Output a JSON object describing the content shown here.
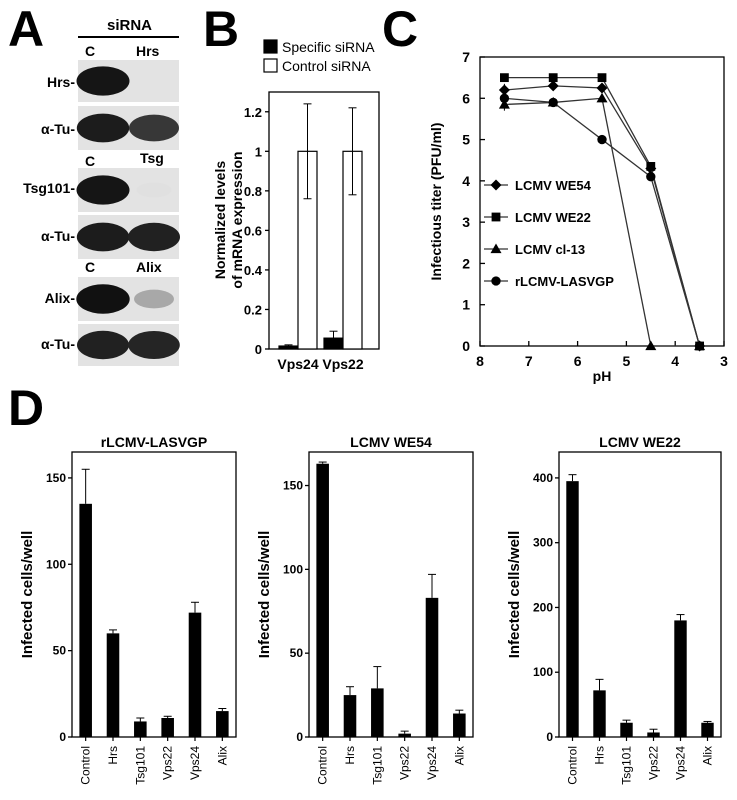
{
  "panels": {
    "a": "A",
    "b": "B",
    "c": "C",
    "d": "D"
  },
  "panel_a": {
    "header": "siRNA",
    "blots": [
      {
        "label": "Hrs-",
        "band_intensity": [
          0.95,
          0.0
        ]
      },
      {
        "label": "α-Tu-",
        "band_intensity": [
          0.92,
          0.8
        ]
      },
      {
        "label": "Tsg101-",
        "band_intensity": [
          0.95,
          0.05
        ]
      },
      {
        "label": "α-Tu-",
        "band_intensity": [
          0.92,
          0.9
        ]
      },
      {
        "label": "Alix-",
        "band_intensity": [
          0.97,
          0.3
        ]
      },
      {
        "label": "α-Tu-",
        "band_intensity": [
          0.9,
          0.88
        ]
      }
    ],
    "lane_labels": [
      [
        "C",
        "Hrs"
      ],
      [
        "C",
        "Tsg"
      ],
      [
        "C",
        "Alix"
      ]
    ]
  },
  "chart_data": [
    {
      "type": "bar",
      "panel": "B",
      "categories": [
        "Vps24",
        "Vps22"
      ],
      "series": [
        {
          "name": "Specific siRNA",
          "values": [
            0.015,
            0.055
          ],
          "errors": [
            0.006,
            0.035
          ],
          "color": "#000000"
        },
        {
          "name": "Control siRNA",
          "values": [
            1.0,
            1.0
          ],
          "errors": [
            0.24,
            0.22
          ],
          "color": "#ffffff"
        }
      ],
      "ylabel": "Normalized levels of mRNA expression",
      "ylabel_lines": [
        "Normalized levels",
        "of mRNA expression"
      ],
      "ylim": [
        0,
        1.3
      ],
      "yticks": [
        "0",
        "0.2",
        "0.4",
        "0.6",
        "0.8",
        "1",
        "1.2"
      ],
      "legend": "top"
    },
    {
      "type": "line",
      "panel": "C",
      "x": [
        7.5,
        6.5,
        5.5,
        4.5,
        3.5
      ],
      "series": [
        {
          "name": "LCMV WE54",
          "marker": "diamond",
          "values": [
            6.2,
            6.3,
            6.25,
            4.3,
            0
          ]
        },
        {
          "name": "LCMV WE22",
          "marker": "square",
          "values": [
            6.5,
            6.5,
            6.5,
            4.35,
            0
          ]
        },
        {
          "name": "LCMV cl-13",
          "marker": "triangle",
          "values": [
            5.85,
            5.9,
            6.0,
            0,
            0
          ]
        },
        {
          "name": "rLCMV-LASVGP",
          "marker": "circle",
          "values": [
            6.0,
            5.9,
            5.0,
            4.1,
            0
          ]
        }
      ],
      "xlabel": "pH",
      "ylabel": "Infectious titer (PFU/ml)",
      "xlim": [
        8,
        3
      ],
      "ylim": [
        0,
        7
      ],
      "xticks": [
        "8",
        "7",
        "6",
        "5",
        "4",
        "3"
      ],
      "yticks": [
        "0",
        "1",
        "2",
        "3",
        "4",
        "5",
        "6",
        "7"
      ],
      "legend": "center-left"
    },
    {
      "type": "bar",
      "panel": "D",
      "title": "rLCMV-LASVGP",
      "categories": [
        "Control",
        "Hrs",
        "Tsg101",
        "Vps22",
        "Vps24",
        "Alix"
      ],
      "values": [
        135,
        60,
        9,
        11,
        72,
        15
      ],
      "errors": [
        20,
        2,
        2,
        1,
        6,
        1.5
      ],
      "ylabel": "Infected cells/well",
      "ylim": [
        0,
        165
      ],
      "yticks": [
        "0",
        "50",
        "100",
        "150"
      ]
    },
    {
      "type": "bar",
      "panel": "D",
      "title": "LCMV WE54",
      "categories": [
        "Control",
        "Hrs",
        "Tsg101",
        "Vps22",
        "Vps24",
        "Alix"
      ],
      "values": [
        163,
        25,
        29,
        2,
        83,
        14
      ],
      "errors": [
        1,
        5,
        13,
        1.5,
        14,
        2
      ],
      "ylabel": "Infected cells/well",
      "ylim": [
        0,
        170
      ],
      "yticks": [
        "0",
        "50",
        "100",
        "150"
      ]
    },
    {
      "type": "bar",
      "panel": "D",
      "title": "LCMV WE22",
      "categories": [
        "Control",
        "Hrs",
        "Tsg101",
        "Vps22",
        "Vps24",
        "Alix"
      ],
      "values": [
        395,
        72,
        22,
        7,
        180,
        22
      ],
      "errors": [
        10,
        17,
        4,
        5,
        9,
        2
      ],
      "ylabel": "Infected cells/well",
      "ylim": [
        0,
        440
      ],
      "yticks": [
        "0",
        "100",
        "200",
        "300",
        "400"
      ]
    }
  ]
}
